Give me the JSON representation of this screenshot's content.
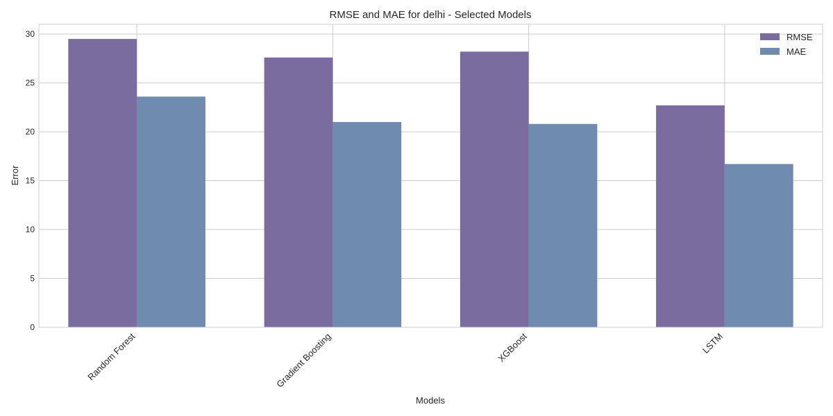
{
  "chart_data": {
    "type": "bar",
    "title": "RMSE and MAE for delhi - Selected Models",
    "xlabel": "Models",
    "ylabel": "Error",
    "categories": [
      "Random Forest",
      "Gradient Boosting",
      "XGBoost",
      "LSTM"
    ],
    "series": [
      {
        "name": "RMSE",
        "values": [
          29.5,
          27.6,
          28.2,
          22.7
        ],
        "color": "#7b6ca0"
      },
      {
        "name": "MAE",
        "values": [
          23.6,
          21.0,
          20.8,
          16.7
        ],
        "color": "#6f8bae"
      }
    ],
    "ylim": [
      0,
      31
    ],
    "yticks": [
      0,
      5,
      10,
      15,
      20,
      25,
      30
    ],
    "grid": true,
    "legend_position": "top-right"
  }
}
